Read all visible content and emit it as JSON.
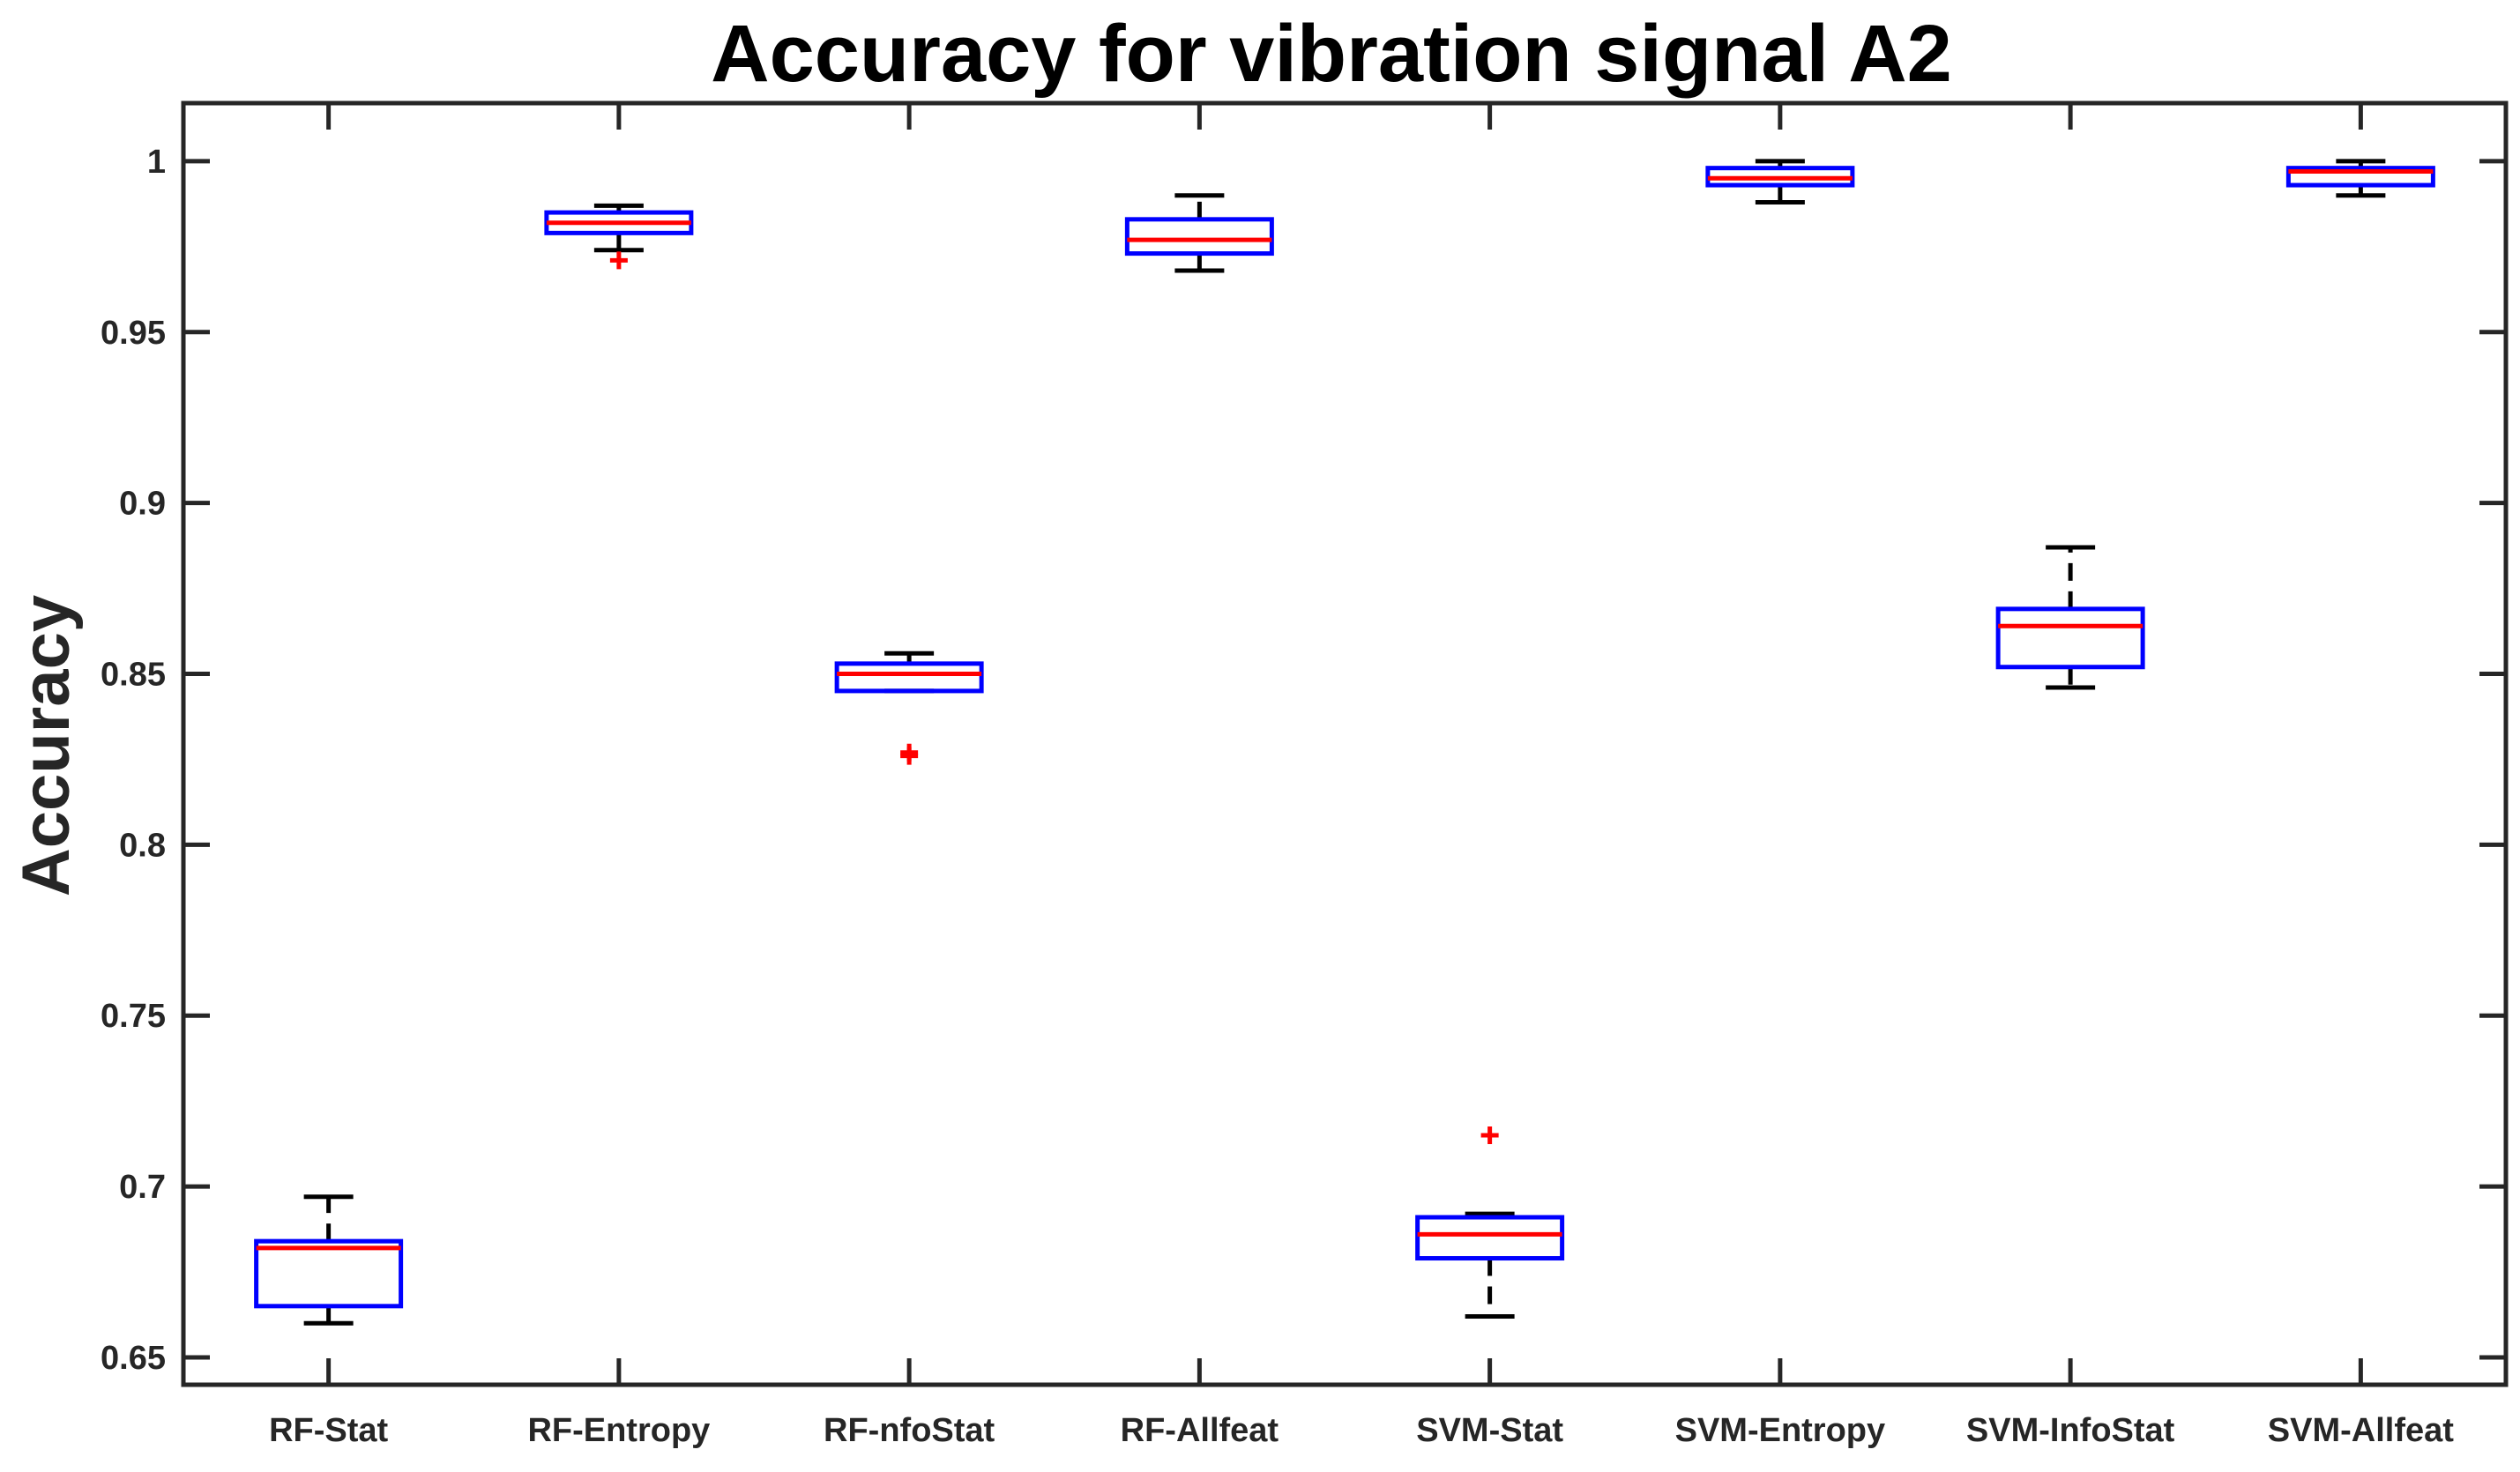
{
  "chart_data": {
    "type": "box",
    "title": "Accuracy for vibration signal A2",
    "xlabel": "",
    "ylabel": "Accuracy",
    "ylim": [
      0.642,
      1.017
    ],
    "yticks": [
      0.65,
      0.7,
      0.75,
      0.8,
      0.85,
      0.9,
      0.95,
      1
    ],
    "ytick_labels": [
      "0.65",
      "0.7",
      "0.75",
      "0.8",
      "0.85",
      "0.9",
      "0.95",
      "1"
    ],
    "grid": false,
    "categories": [
      "RF-Stat",
      "RF-Entropy",
      "RF-nfoStat",
      "RF-Allfeat",
      "SVM-Stat",
      "SVM-Entropy",
      "SVM-InfoStat",
      "SVM-Allfeat"
    ],
    "boxes": [
      {
        "label": "RF-Stat",
        "whisker_low": 0.66,
        "q1": 0.665,
        "median": 0.682,
        "q3": 0.684,
        "whisker_high": 0.697,
        "outliers": []
      },
      {
        "label": "RF-Entropy",
        "whisker_low": 0.974,
        "q1": 0.979,
        "median": 0.982,
        "q3": 0.985,
        "whisker_high": 0.987,
        "outliers": [
          0.971
        ]
      },
      {
        "label": "RF-nfoStat",
        "whisker_low": 0.845,
        "q1": 0.845,
        "median": 0.85,
        "q3": 0.853,
        "whisker_high": 0.856,
        "outliers": [
          0.826,
          0.827
        ]
      },
      {
        "label": "RF-Allfeat",
        "whisker_low": 0.968,
        "q1": 0.973,
        "median": 0.977,
        "q3": 0.983,
        "whisker_high": 0.99,
        "outliers": []
      },
      {
        "label": "SVM-Stat",
        "whisker_low": 0.662,
        "q1": 0.679,
        "median": 0.686,
        "q3": 0.691,
        "whisker_high": 0.692,
        "outliers": [
          0.715
        ]
      },
      {
        "label": "SVM-Entropy",
        "whisker_low": 0.988,
        "q1": 0.993,
        "median": 0.995,
        "q3": 0.998,
        "whisker_high": 1.0,
        "outliers": []
      },
      {
        "label": "SVM-InfoStat",
        "whisker_low": 0.846,
        "q1": 0.852,
        "median": 0.864,
        "q3": 0.869,
        "whisker_high": 0.887,
        "outliers": []
      },
      {
        "label": "SVM-Allfeat",
        "whisker_low": 0.99,
        "q1": 0.993,
        "median": 0.997,
        "q3": 0.998,
        "whisker_high": 1.0,
        "outliers": []
      }
    ],
    "colors": {
      "box": "#0000ff",
      "median": "#ff0000",
      "whisker": "#000000",
      "outlier": "#ff0000",
      "axis": "#262626"
    }
  }
}
